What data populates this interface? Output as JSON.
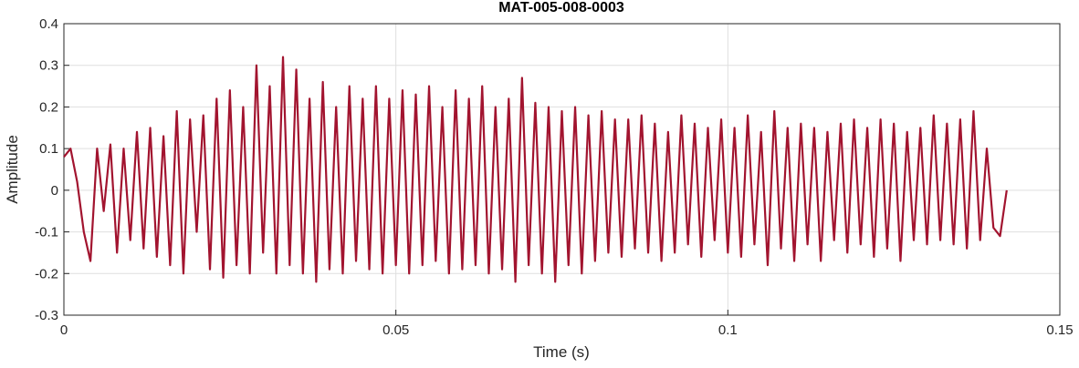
{
  "chart_data": {
    "type": "line",
    "title": "MAT-005-008-0003",
    "x_label": "Time (s)",
    "y_label": "Amplitude",
    "color": "#a2142f",
    "grid": true,
    "xlim": [
      0,
      0.15
    ],
    "xticks": [
      0,
      0.05,
      0.1,
      0.15
    ],
    "ylim": [
      -0.3,
      0.4
    ],
    "yticks": [
      -0.3,
      -0.2,
      -0.1,
      0,
      0.1,
      0.2,
      0.3,
      0.4
    ],
    "x": [
      0,
      0.001,
      0.002,
      0.003,
      0.004,
      0.005,
      0.006,
      0.007,
      0.008,
      0.009,
      0.01,
      0.011,
      0.012,
      0.013,
      0.014,
      0.015,
      0.016,
      0.017,
      0.018,
      0.019,
      0.02,
      0.021,
      0.022,
      0.023,
      0.024,
      0.025,
      0.026,
      0.027,
      0.028,
      0.029,
      0.03,
      0.031,
      0.032,
      0.033,
      0.034,
      0.035,
      0.036,
      0.037,
      0.038,
      0.039,
      0.04,
      0.041,
      0.042,
      0.043,
      0.044,
      0.045,
      0.046,
      0.047,
      0.048,
      0.049,
      0.05,
      0.051,
      0.052,
      0.053,
      0.054,
      0.055,
      0.056,
      0.057,
      0.058,
      0.059,
      0.06,
      0.061,
      0.062,
      0.063,
      0.064,
      0.065,
      0.066,
      0.067,
      0.068,
      0.069,
      0.07,
      0.071,
      0.072,
      0.073,
      0.074,
      0.075,
      0.076,
      0.077,
      0.078,
      0.079,
      0.08,
      0.081,
      0.082,
      0.083,
      0.084,
      0.085,
      0.086,
      0.087,
      0.088,
      0.089,
      0.09,
      0.091,
      0.092,
      0.093,
      0.094,
      0.095,
      0.096,
      0.097,
      0.098,
      0.099,
      0.1,
      0.101,
      0.102,
      0.103,
      0.104,
      0.105,
      0.106,
      0.107,
      0.108,
      0.109,
      0.11,
      0.111,
      0.112,
      0.113,
      0.114,
      0.115,
      0.116,
      0.117,
      0.118,
      0.119,
      0.12,
      0.121,
      0.122,
      0.123,
      0.124,
      0.125,
      0.126,
      0.127,
      0.128,
      0.129,
      0.13,
      0.131,
      0.132,
      0.133,
      0.134,
      0.135,
      0.136,
      0.137,
      0.138,
      0.139,
      0.14,
      0.141,
      0.142
    ],
    "values": [
      0.08,
      0.1,
      0.02,
      -0.1,
      -0.17,
      0.1,
      -0.05,
      0.11,
      -0.15,
      0.1,
      -0.12,
      0.14,
      -0.14,
      0.15,
      -0.16,
      0.13,
      -0.18,
      0.19,
      -0.2,
      0.17,
      -0.1,
      0.18,
      -0.19,
      0.22,
      -0.21,
      0.24,
      -0.18,
      0.2,
      -0.2,
      0.3,
      -0.15,
      0.25,
      -0.2,
      0.32,
      -0.18,
      0.29,
      -0.2,
      0.22,
      -0.22,
      0.26,
      -0.19,
      0.2,
      -0.2,
      0.25,
      -0.17,
      0.22,
      -0.19,
      0.25,
      -0.2,
      0.22,
      -0.18,
      0.24,
      -0.2,
      0.23,
      -0.18,
      0.25,
      -0.17,
      0.2,
      -0.2,
      0.24,
      -0.19,
      0.22,
      -0.18,
      0.25,
      -0.2,
      0.2,
      -0.19,
      0.22,
      -0.22,
      0.27,
      -0.18,
      0.21,
      -0.2,
      0.2,
      -0.22,
      0.19,
      -0.18,
      0.2,
      -0.2,
      0.18,
      -0.17,
      0.19,
      -0.15,
      0.17,
      -0.16,
      0.17,
      -0.14,
      0.18,
      -0.15,
      0.16,
      -0.17,
      0.14,
      -0.15,
      0.18,
      -0.13,
      0.16,
      -0.16,
      0.15,
      -0.12,
      0.17,
      -0.15,
      0.15,
      -0.16,
      0.18,
      -0.13,
      0.14,
      -0.18,
      0.19,
      -0.14,
      0.15,
      -0.17,
      0.16,
      -0.13,
      0.15,
      -0.17,
      0.14,
      -0.12,
      0.16,
      -0.15,
      0.17,
      -0.13,
      0.15,
      -0.16,
      0.17,
      -0.14,
      0.16,
      -0.17,
      0.14,
      -0.12,
      0.15,
      -0.13,
      0.18,
      -0.12,
      0.16,
      -0.13,
      0.17,
      -0.14,
      0.19,
      -0.12,
      0.1,
      -0.09,
      -0.11,
      0
    ]
  }
}
